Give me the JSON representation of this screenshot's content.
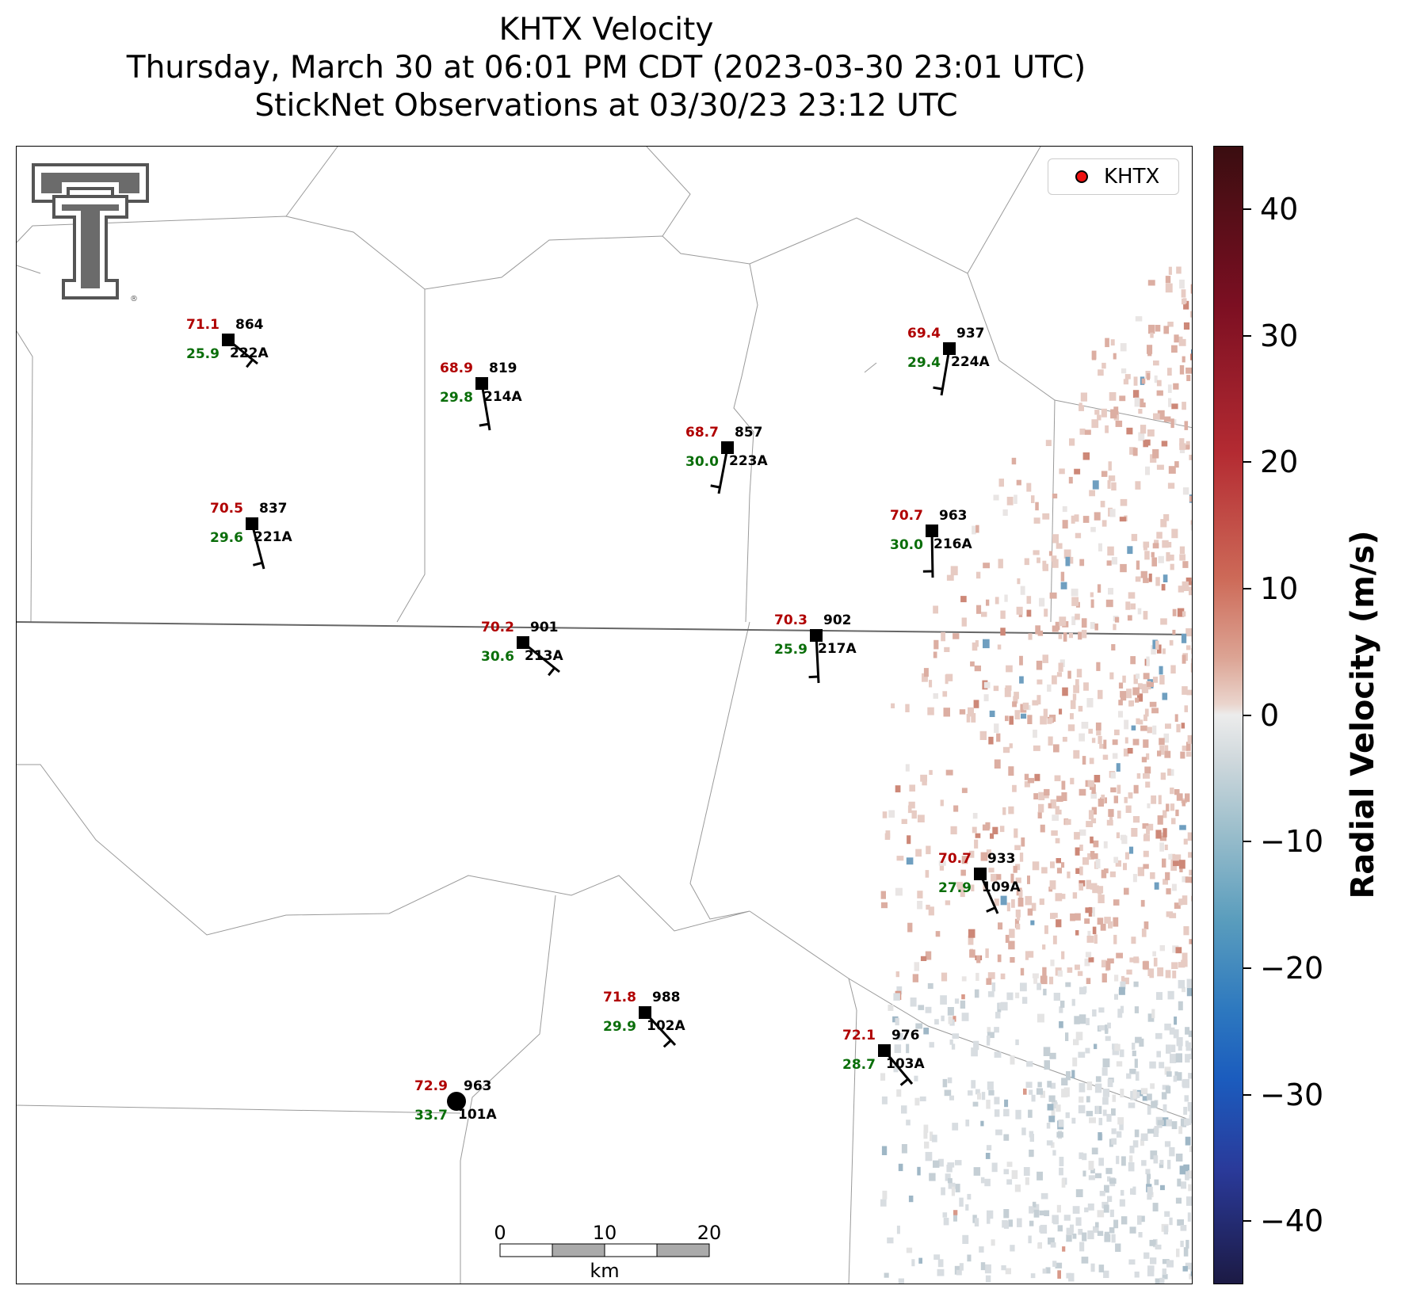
{
  "title": {
    "line1": "KHTX Velocity",
    "line2": "Thursday, March 30 at 06:01 PM CDT (2023-03-30 23:01 UTC)",
    "line3": "StickNet Observations at 03/30/23 23:12 UTC"
  },
  "legend": {
    "label": "KHTX",
    "marker_color": "#ee1111"
  },
  "colorbar": {
    "label": "Radial Velocity (m/s)",
    "ticks": [
      "40",
      "30",
      "20",
      "10",
      "0",
      "−10",
      "−20",
      "−30",
      "−40"
    ],
    "range": [
      -45,
      45
    ]
  },
  "scale_bar": {
    "ticks": [
      "0",
      "10",
      "20"
    ],
    "unit": "km"
  },
  "logo": {
    "name": "texas-tech-double-t-logo"
  },
  "stations": [
    {
      "id": "222A",
      "temp": "71.1",
      "dew": "25.9",
      "pres": "864"
    },
    {
      "id": "214A",
      "temp": "68.9",
      "dew": "29.8",
      "pres": "819"
    },
    {
      "id": "223A",
      "temp": "68.7",
      "dew": "30.0",
      "pres": "857"
    },
    {
      "id": "224A",
      "temp": "69.4",
      "dew": "29.4",
      "pres": "937"
    },
    {
      "id": "221A",
      "temp": "70.5",
      "dew": "29.6",
      "pres": "837"
    },
    {
      "id": "216A",
      "temp": "70.7",
      "dew": "30.0",
      "pres": "963"
    },
    {
      "id": "213A",
      "temp": "70.2",
      "dew": "30.6",
      "pres": "901"
    },
    {
      "id": "217A",
      "temp": "70.3",
      "dew": "25.9",
      "pres": "902"
    },
    {
      "id": "109A",
      "temp": "70.7",
      "dew": "27.9",
      "pres": "933"
    },
    {
      "id": "102A",
      "temp": "71.8",
      "dew": "29.9",
      "pres": "988"
    },
    {
      "id": "103A",
      "temp": "72.1",
      "dew": "28.7",
      "pres": "976"
    },
    {
      "id": "101A",
      "temp": "72.9",
      "dew": "33.7",
      "pres": "963"
    }
  ]
}
